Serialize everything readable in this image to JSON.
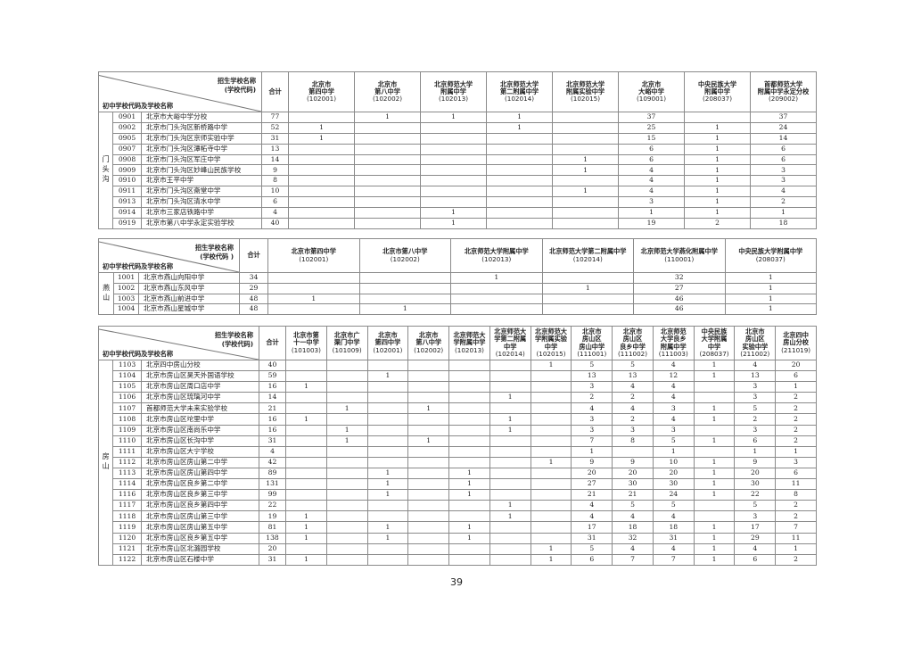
{
  "tables": [
    {
      "corner": {
        "top": "招生学校名称",
        "code": "(学校代码)",
        "bottom": "初中学校代码及学校名称"
      },
      "total_label": "合计",
      "region": "门头沟",
      "columns": [
        {
          "name": [
            "北京市",
            "第四中学"
          ],
          "code": "(102001)"
        },
        {
          "name": [
            "北京市",
            "第八中学"
          ],
          "code": "(102002)"
        },
        {
          "name": [
            "北京师范大学",
            "附属中学"
          ],
          "code": "(102013)"
        },
        {
          "name": [
            "北京师范大学",
            "第二附属中学"
          ],
          "code": "(102014)"
        },
        {
          "name": [
            "北京师范大学",
            "附属实验中学"
          ],
          "code": "(102015)"
        },
        {
          "name": [
            "北京市",
            "大峪中学"
          ],
          "code": "(109001)"
        },
        {
          "name": [
            "中央民族大学",
            "附属中学"
          ],
          "code": "(208037)"
        },
        {
          "name": [
            "首都师范大学",
            "附属中学永定分校"
          ],
          "code": "(209002)"
        }
      ],
      "rows": [
        {
          "code": "0901",
          "name": "北京市大峪中学分校",
          "total": "77",
          "values": [
            "",
            "1",
            "1",
            "1",
            "",
            "37",
            "",
            "37"
          ]
        },
        {
          "code": "0902",
          "name": "北京市门头沟区新桥路中学",
          "total": "52",
          "values": [
            "1",
            "",
            "",
            "1",
            "",
            "25",
            "1",
            "24"
          ]
        },
        {
          "code": "0905",
          "name": "北京市门头沟区京师实验中学",
          "total": "31",
          "values": [
            "1",
            "",
            "",
            "",
            "",
            "15",
            "1",
            "14"
          ]
        },
        {
          "code": "0907",
          "name": "北京市门头沟区潭柘寺中学",
          "total": "13",
          "values": [
            "",
            "",
            "",
            "",
            "",
            "6",
            "1",
            "6"
          ]
        },
        {
          "code": "0908",
          "name": "北京市门头沟区军庄中学",
          "total": "14",
          "values": [
            "",
            "",
            "",
            "",
            "1",
            "6",
            "1",
            "6"
          ]
        },
        {
          "code": "0909",
          "name": "北京市门头沟区妙峰山民族学校",
          "total": "9",
          "values": [
            "",
            "",
            "",
            "",
            "1",
            "4",
            "1",
            "3"
          ]
        },
        {
          "code": "0910",
          "name": "北京市王平中学",
          "total": "8",
          "values": [
            "",
            "",
            "",
            "",
            "",
            "4",
            "1",
            "3"
          ]
        },
        {
          "code": "0911",
          "name": "北京市门头沟区斋堂中学",
          "total": "10",
          "values": [
            "",
            "",
            "",
            "",
            "1",
            "4",
            "1",
            "4"
          ]
        },
        {
          "code": "0913",
          "name": "北京市门头沟区清水中学",
          "total": "6",
          "values": [
            "",
            "",
            "",
            "",
            "",
            "3",
            "1",
            "2"
          ]
        },
        {
          "code": "0914",
          "name": "北京市三家店铁路中学",
          "total": "4",
          "values": [
            "",
            "",
            "1",
            "",
            "",
            "1",
            "1",
            "1"
          ]
        },
        {
          "code": "0919",
          "name": "北京市第八中学永定实验学校",
          "total": "40",
          "values": [
            "",
            "",
            "1",
            "",
            "",
            "19",
            "2",
            "18"
          ]
        }
      ]
    },
    {
      "corner": {
        "top": "招生学校名称",
        "code": "(学校代码 )",
        "bottom": "初中学校代码及学校名称"
      },
      "total_label": "合计",
      "region": "燕山",
      "columns": [
        {
          "name": [
            "北京市第四中学"
          ],
          "code": "(102001)"
        },
        {
          "name": [
            "北京市第八中学"
          ],
          "code": "(102002)"
        },
        {
          "name": [
            "北京师范大学附属中学"
          ],
          "code": "(102013)"
        },
        {
          "name": [
            "北京师范大学第二附属中学"
          ],
          "code": "(102014)"
        },
        {
          "name": [
            "北京师范大学燕化附属中学"
          ],
          "code": "(110001)"
        },
        {
          "name": [
            "中央民族大学附属中学"
          ],
          "code": "(208037)"
        }
      ],
      "rows": [
        {
          "code": "1001",
          "name": "北京市燕山向阳中学",
          "total": "34",
          "values": [
            "",
            "",
            "1",
            "",
            "32",
            "1"
          ]
        },
        {
          "code": "1002",
          "name": "北京市燕山东风中学",
          "total": "29",
          "values": [
            "",
            "",
            "",
            "1",
            "27",
            "1"
          ]
        },
        {
          "code": "1003",
          "name": "北京市燕山前进中学",
          "total": "48",
          "values": [
            "1",
            "",
            "",
            "",
            "46",
            "1"
          ]
        },
        {
          "code": "1004",
          "name": "北京市燕山星城中学",
          "total": "48",
          "values": [
            "",
            "1",
            "",
            "",
            "46",
            "1"
          ]
        }
      ]
    },
    {
      "corner": {
        "top": "招生学校名称",
        "code": "(学校代码)",
        "bottom": "初中学校代码及学校名称"
      },
      "total_label": "合计",
      "region": "房山",
      "columns": [
        {
          "name": [
            "北京市第",
            "十一中学"
          ],
          "code": "(101003)"
        },
        {
          "name": [
            "北京市广",
            "渠门中学"
          ],
          "code": "(101009)"
        },
        {
          "name": [
            "北京市",
            "第四中学"
          ],
          "code": "(102001)"
        },
        {
          "name": [
            "北京市",
            "第八中学"
          ],
          "code": "(102002)"
        },
        {
          "name": [
            "北京师范大",
            "学附属中学"
          ],
          "code": "(102013)"
        },
        {
          "name": [
            "北京师范大",
            "学第二附属",
            "中学"
          ],
          "code": "(102014)"
        },
        {
          "name": [
            "北京师范大",
            "学附属实验",
            "中学"
          ],
          "code": "(102015)"
        },
        {
          "name": [
            "北京市",
            "房山区",
            "房山中学"
          ],
          "code": "(111001)"
        },
        {
          "name": [
            "北京市",
            "房山区",
            "良乡中学"
          ],
          "code": "(111002)"
        },
        {
          "name": [
            "北京师范",
            "大学良乡",
            "附属中学"
          ],
          "code": "(111003)"
        },
        {
          "name": [
            "中央民族",
            "大学附属",
            "中学"
          ],
          "code": "(208037)"
        },
        {
          "name": [
            "北京市",
            "房山区",
            "实验中学"
          ],
          "code": "(211002)"
        },
        {
          "name": [
            "北京四中",
            "房山分校"
          ],
          "code": "(211019)"
        }
      ],
      "rows": [
        {
          "code": "1103",
          "name": "北京四中房山分校",
          "total": "40",
          "values": [
            "",
            "",
            "",
            "",
            "",
            "",
            "1",
            "5",
            "5",
            "4",
            "1",
            "4",
            "20"
          ]
        },
        {
          "code": "1104",
          "name": "北京市房山区昊天外国语学校",
          "total": "59",
          "values": [
            "",
            "",
            "1",
            "",
            "",
            "",
            "",
            "13",
            "13",
            "12",
            "1",
            "13",
            "6"
          ]
        },
        {
          "code": "1105",
          "name": "北京市房山区周口店中学",
          "total": "16",
          "values": [
            "1",
            "",
            "",
            "",
            "",
            "",
            "",
            "3",
            "4",
            "4",
            "",
            "3",
            "1"
          ]
        },
        {
          "code": "1106",
          "name": "北京市房山区琉璃河中学",
          "total": "14",
          "values": [
            "",
            "",
            "",
            "",
            "",
            "1",
            "",
            "2",
            "2",
            "4",
            "",
            "3",
            "2"
          ]
        },
        {
          "code": "1107",
          "name": "首都师范大学未来实验学校",
          "total": "21",
          "values": [
            "",
            "1",
            "",
            "1",
            "",
            "",
            "",
            "4",
            "4",
            "3",
            "1",
            "5",
            "2"
          ]
        },
        {
          "code": "1108",
          "name": "北京市房山区坨里中学",
          "total": "16",
          "values": [
            "1",
            "",
            "",
            "",
            "",
            "1",
            "",
            "3",
            "2",
            "4",
            "1",
            "2",
            "2"
          ]
        },
        {
          "code": "1109",
          "name": "北京市房山区南尚乐中学",
          "total": "16",
          "values": [
            "",
            "1",
            "",
            "",
            "",
            "1",
            "",
            "3",
            "3",
            "3",
            "",
            "3",
            "2"
          ]
        },
        {
          "code": "1110",
          "name": "北京市房山区长沟中学",
          "total": "31",
          "values": [
            "",
            "1",
            "",
            "1",
            "",
            "",
            "",
            "7",
            "8",
            "5",
            "1",
            "6",
            "2"
          ]
        },
        {
          "code": "1111",
          "name": "北京市房山区大宁学校",
          "total": "4",
          "values": [
            "",
            "",
            "",
            "",
            "",
            "",
            "",
            "1",
            "",
            "1",
            "",
            "1",
            "1"
          ]
        },
        {
          "code": "1112",
          "name": "北京市房山区房山第二中学",
          "total": "42",
          "values": [
            "",
            "",
            "",
            "",
            "",
            "",
            "1",
            "9",
            "9",
            "10",
            "1",
            "9",
            "3"
          ]
        },
        {
          "code": "1113",
          "name": "北京市房山区房山第四中学",
          "total": "89",
          "values": [
            "",
            "",
            "1",
            "",
            "1",
            "",
            "",
            "20",
            "20",
            "20",
            "1",
            "20",
            "6"
          ]
        },
        {
          "code": "1114",
          "name": "北京市房山区良乡第二中学",
          "total": "131",
          "values": [
            "",
            "",
            "1",
            "",
            "1",
            "",
            "",
            "27",
            "30",
            "30",
            "1",
            "30",
            "11"
          ]
        },
        {
          "code": "1116",
          "name": "北京市房山区良乡第三中学",
          "total": "99",
          "values": [
            "",
            "",
            "1",
            "",
            "1",
            "",
            "",
            "21",
            "21",
            "24",
            "1",
            "22",
            "8"
          ]
        },
        {
          "code": "1117",
          "name": "北京市房山区良乡第四中学",
          "total": "22",
          "values": [
            "",
            "",
            "",
            "",
            "",
            "1",
            "",
            "4",
            "5",
            "5",
            "",
            "5",
            "2"
          ]
        },
        {
          "code": "1118",
          "name": "北京市房山区房山第三中学",
          "total": "19",
          "values": [
            "1",
            "",
            "",
            "",
            "",
            "1",
            "",
            "4",
            "4",
            "4",
            "",
            "3",
            "2"
          ]
        },
        {
          "code": "1119",
          "name": "北京市房山区房山第五中学",
          "total": "81",
          "values": [
            "1",
            "",
            "1",
            "",
            "1",
            "",
            "",
            "17",
            "18",
            "18",
            "1",
            "17",
            "7"
          ]
        },
        {
          "code": "1120",
          "name": "北京市房山区良乡第五中学",
          "total": "138",
          "values": [
            "1",
            "",
            "1",
            "",
            "1",
            "",
            "",
            "31",
            "32",
            "31",
            "1",
            "29",
            "11"
          ]
        },
        {
          "code": "1121",
          "name": "北京市房山区北潞园学校",
          "total": "20",
          "values": [
            "",
            "",
            "",
            "",
            "",
            "",
            "1",
            "5",
            "4",
            "4",
            "1",
            "4",
            "1"
          ]
        },
        {
          "code": "1122",
          "name": "北京市房山区石楼中学",
          "total": "31",
          "values": [
            "1",
            "",
            "",
            "",
            "",
            "",
            "1",
            "6",
            "7",
            "7",
            "1",
            "6",
            "2"
          ]
        }
      ]
    }
  ],
  "page_number": "39"
}
